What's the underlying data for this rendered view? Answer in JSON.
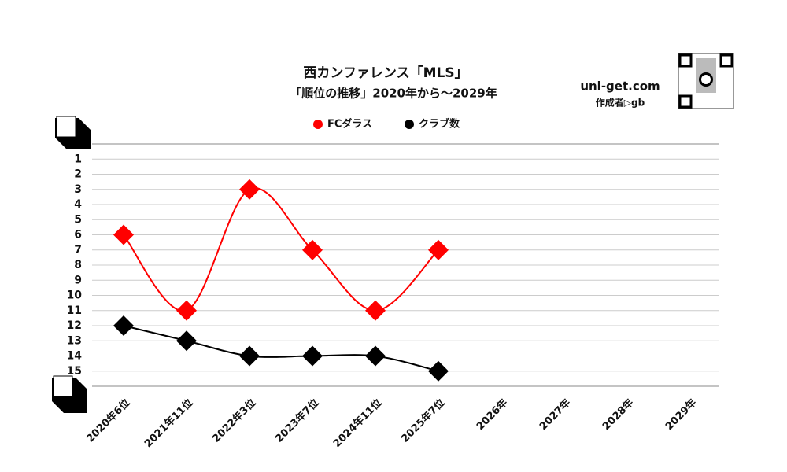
{
  "chart_data": {
    "type": "line",
    "title": "西カンファレンス「MLS」",
    "subtitle": "「順位の推移」2020年から～2029年",
    "site": "uni-get.com",
    "author": "作成者▷gb",
    "categories": [
      "2020年6位",
      "2021年11位",
      "2022年3位",
      "2023年7位",
      "2024年11位",
      "2025年7位",
      "2026年",
      "2027年",
      "2028年",
      "2029年"
    ],
    "series": [
      {
        "name": "FCダラス",
        "color": "#ff0000",
        "values": [
          6,
          11,
          3,
          7,
          11,
          7,
          null,
          null,
          null,
          null
        ]
      },
      {
        "name": "クラブ数",
        "color": "#000000",
        "values": [
          12,
          13,
          14,
          14,
          14,
          15,
          null,
          null,
          null,
          null
        ]
      }
    ],
    "ylim": [
      0,
      16
    ],
    "y_inverted": true,
    "yticks": [
      1,
      2,
      3,
      4,
      5,
      6,
      7,
      8,
      9,
      10,
      11,
      12,
      13,
      14,
      15
    ],
    "grid": true,
    "legend": "top"
  }
}
